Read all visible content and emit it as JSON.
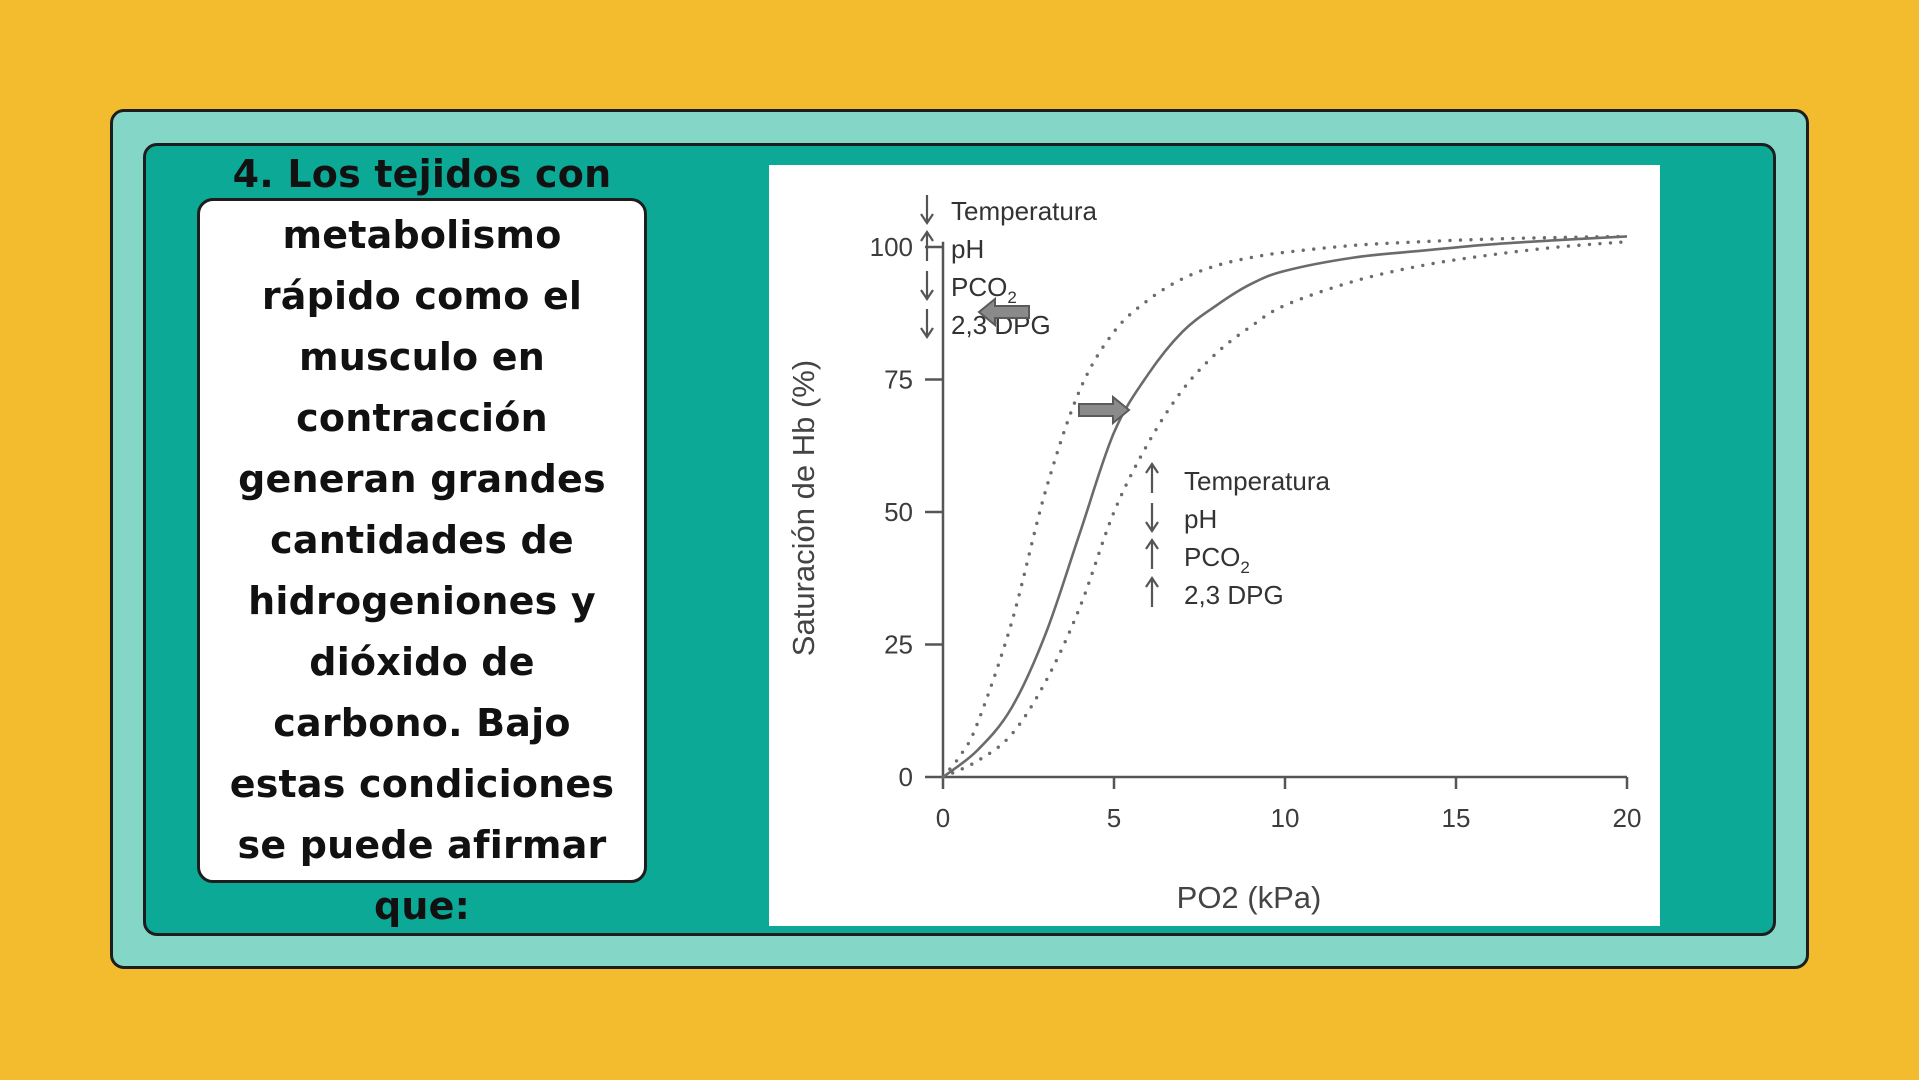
{
  "question": {
    "text": "4. Los tejidos con metabolismo rápido como el musculo en contracción generan grandes cantidades de hidrogeniones y dióxido de carbono. Bajo estas condiciones se puede afirmar que:"
  },
  "chart_data": {
    "type": "line",
    "xlabel": "PO2 (kPa)",
    "ylabel": "Saturación de Hb (%)",
    "xlim": [
      0,
      20
    ],
    "ylim": [
      0,
      100
    ],
    "x_ticks": [
      "0",
      "5",
      "10",
      "15",
      "20"
    ],
    "y_ticks": [
      "0",
      "25",
      "50",
      "75",
      "100"
    ],
    "grid": false,
    "series": [
      {
        "style": "solid",
        "color": "#6b6b6b",
        "x": [
          0,
          1,
          2,
          3,
          4,
          5,
          6,
          7,
          8,
          9,
          10,
          12,
          14,
          16,
          18,
          20
        ],
        "y": [
          0,
          5,
          13,
          27,
          46,
          65,
          76,
          84,
          89,
          93,
          95.5,
          98,
          99.3,
          100.5,
          101.3,
          102
        ]
      },
      {
        "style": "dotted",
        "color": "#6b6b6b",
        "x": [
          0,
          0.5,
          1,
          2,
          3,
          4,
          5,
          6,
          7,
          8,
          9,
          10,
          12,
          14,
          16,
          18,
          20
        ],
        "y": [
          0,
          4,
          10,
          29,
          54,
          73,
          84,
          90,
          94,
          96.5,
          98,
          99,
          100.3,
          101,
          101.5,
          101.8,
          102
        ]
      },
      {
        "style": "dotted",
        "color": "#6b6b6b",
        "x": [
          0,
          1,
          2,
          3,
          4,
          5,
          6,
          7,
          8,
          9,
          10,
          12,
          14,
          16,
          18,
          20
        ],
        "y": [
          0,
          3,
          8,
          18,
          32,
          50,
          63,
          73,
          80,
          85,
          89,
          93.5,
          96.5,
          98.5,
          100,
          101
        ]
      }
    ],
    "annotations": [
      {
        "group": "left",
        "arrow_direction": "left",
        "items": [
          {
            "dir": "down",
            "label": "Temperatura"
          },
          {
            "dir": "up",
            "label": "pH"
          },
          {
            "dir": "down",
            "label": "PCO",
            "sub": "2"
          },
          {
            "dir": "down",
            "label": "2,3 DPG"
          }
        ]
      },
      {
        "group": "right",
        "arrow_direction": "right",
        "items": [
          {
            "dir": "up",
            "label": "Temperatura"
          },
          {
            "dir": "down",
            "label": "pH"
          },
          {
            "dir": "up",
            "label": "PCO",
            "sub": "2"
          },
          {
            "dir": "up",
            "label": "2,3 DPG"
          }
        ]
      }
    ]
  }
}
